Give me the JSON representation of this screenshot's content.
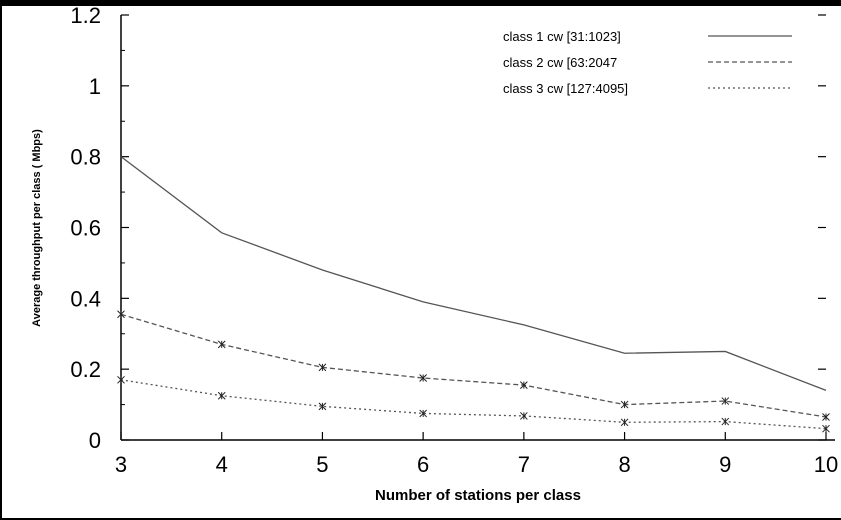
{
  "chart_data": {
    "type": "line",
    "title": "",
    "xlabel": "Number of stations per class",
    "ylabel": "Average throughput per class ( Mbps)",
    "x": [
      3,
      4,
      5,
      6,
      7,
      8,
      9,
      10
    ],
    "xlim": [
      3,
      10
    ],
    "ylim": [
      0,
      1.2
    ],
    "x_ticks": [
      "3",
      "4",
      "5",
      "6",
      "7",
      "8",
      "9",
      "10"
    ],
    "y_ticks": [
      "0",
      "0.2",
      "0.4",
      "0.6",
      "0.8",
      "1",
      "1.2"
    ],
    "y_tick_values": [
      0,
      0.2,
      0.4,
      0.6,
      0.8,
      1,
      1.2
    ],
    "grid": false,
    "legend_position": "top-right",
    "series": [
      {
        "name": "class 1 cw [31:1023]",
        "style": "solid",
        "markers": false,
        "values": [
          0.8,
          0.585,
          0.48,
          0.39,
          0.325,
          0.245,
          0.25,
          0.14
        ]
      },
      {
        "name": "class 2 cw [63:2047",
        "style": "dashed",
        "markers": true,
        "values": [
          0.355,
          0.27,
          0.205,
          0.175,
          0.155,
          0.1,
          0.11,
          0.065
        ]
      },
      {
        "name": "class 3 cw [127:4095]",
        "style": "dotted",
        "markers": true,
        "values": [
          0.17,
          0.125,
          0.095,
          0.075,
          0.068,
          0.05,
          0.052,
          0.032
        ]
      }
    ]
  }
}
